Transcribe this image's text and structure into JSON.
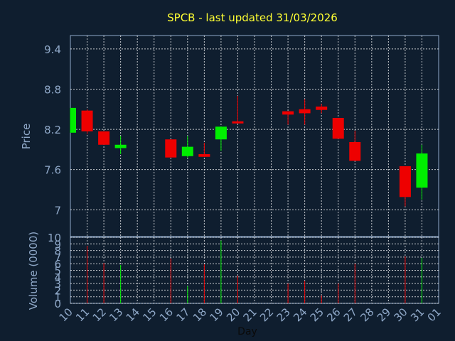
{
  "colors": {
    "background": "#0f1e2f",
    "title": "#ffff33",
    "axis_text": "#8fa8c8",
    "grid": "#ffffff",
    "up": "#00ee00",
    "down": "#ee0000"
  },
  "chart_data": [
    {
      "type": "candlestick",
      "title": "SPCB - last updated 31/03/2026",
      "ylabel": "Price",
      "ylim": [
        6.6,
        9.6
      ],
      "yticks": [
        "9.4",
        "8.8",
        "8.2",
        "7.6",
        "7"
      ],
      "grid": true,
      "categories": [
        "10",
        "11",
        "12",
        "13",
        "14",
        "15",
        "16",
        "17",
        "18",
        "19",
        "20",
        "21",
        "22",
        "23",
        "24",
        "25",
        "26",
        "27",
        "28",
        "29",
        "30",
        "31",
        "01"
      ],
      "candles": [
        {
          "day": "10",
          "open": 8.15,
          "close": 8.52,
          "high": 8.52,
          "low": 8.15,
          "dir": "up"
        },
        {
          "day": "11",
          "open": 8.48,
          "close": 8.17,
          "high": 8.5,
          "low": 8.13,
          "dir": "down"
        },
        {
          "day": "12",
          "open": 8.17,
          "close": 7.97,
          "high": 8.17,
          "low": 7.97,
          "dir": "down"
        },
        {
          "day": "13",
          "open": 7.92,
          "close": 7.97,
          "high": 8.1,
          "low": 7.83,
          "dir": "up"
        },
        {
          "day": "16",
          "open": 8.05,
          "close": 7.78,
          "high": 8.05,
          "low": 7.78,
          "dir": "down"
        },
        {
          "day": "17",
          "open": 7.8,
          "close": 7.94,
          "high": 8.1,
          "low": 7.78,
          "dir": "up"
        },
        {
          "day": "18",
          "open": 7.83,
          "close": 7.79,
          "high": 8.0,
          "low": 7.79,
          "dir": "down"
        },
        {
          "day": "19",
          "open": 8.05,
          "close": 8.24,
          "high": 8.24,
          "low": 7.88,
          "dir": "up"
        },
        {
          "day": "20",
          "open": 8.32,
          "close": 8.29,
          "high": 8.7,
          "low": 8.29,
          "dir": "down"
        },
        {
          "day": "23",
          "open": 8.47,
          "close": 8.42,
          "high": 8.47,
          "low": 8.27,
          "dir": "down"
        },
        {
          "day": "24",
          "open": 8.5,
          "close": 8.44,
          "high": 8.65,
          "low": 8.27,
          "dir": "down"
        },
        {
          "day": "25",
          "open": 8.54,
          "close": 8.49,
          "high": 8.58,
          "low": 8.44,
          "dir": "down"
        },
        {
          "day": "26",
          "open": 8.37,
          "close": 8.06,
          "high": 8.37,
          "low": 8.06,
          "dir": "down"
        },
        {
          "day": "27",
          "open": 8.01,
          "close": 7.73,
          "high": 8.18,
          "low": 7.73,
          "dir": "down"
        },
        {
          "day": "30",
          "open": 7.65,
          "close": 7.19,
          "high": 7.65,
          "low": 7.05,
          "dir": "down"
        },
        {
          "day": "31",
          "open": 7.33,
          "close": 7.84,
          "high": 7.97,
          "low": 7.15,
          "dir": "up"
        }
      ]
    },
    {
      "type": "bar",
      "ylabel": "Volume (0000)",
      "xlabel": "Day",
      "ylim": [
        0,
        10
      ],
      "yticks": [
        "10",
        "9",
        "8",
        "7",
        "6",
        "5",
        "4",
        "3",
        "2",
        "1",
        "0"
      ],
      "grid": true,
      "categories": [
        "10",
        "11",
        "12",
        "13",
        "14",
        "15",
        "16",
        "17",
        "18",
        "19",
        "20",
        "21",
        "22",
        "23",
        "24",
        "25",
        "26",
        "27",
        "28",
        "29",
        "30",
        "31",
        "01"
      ],
      "volumes": [
        {
          "day": "11",
          "value": 8.7,
          "dir": "down"
        },
        {
          "day": "12",
          "value": 6.1,
          "dir": "down"
        },
        {
          "day": "13",
          "value": 5.8,
          "dir": "up"
        },
        {
          "day": "16",
          "value": 6.8,
          "dir": "down"
        },
        {
          "day": "17",
          "value": 2.6,
          "dir": "up"
        },
        {
          "day": "18",
          "value": 5.9,
          "dir": "down"
        },
        {
          "day": "19",
          "value": 9.5,
          "dir": "up"
        },
        {
          "day": "20",
          "value": 4.2,
          "dir": "down"
        },
        {
          "day": "23",
          "value": 3.0,
          "dir": "down"
        },
        {
          "day": "24",
          "value": 3.4,
          "dir": "down"
        },
        {
          "day": "25",
          "value": 1.2,
          "dir": "down"
        },
        {
          "day": "26",
          "value": 3.0,
          "dir": "down"
        },
        {
          "day": "27",
          "value": 6.0,
          "dir": "down"
        },
        {
          "day": "30",
          "value": 7.1,
          "dir": "down"
        },
        {
          "day": "31",
          "value": 6.9,
          "dir": "up"
        }
      ]
    }
  ]
}
